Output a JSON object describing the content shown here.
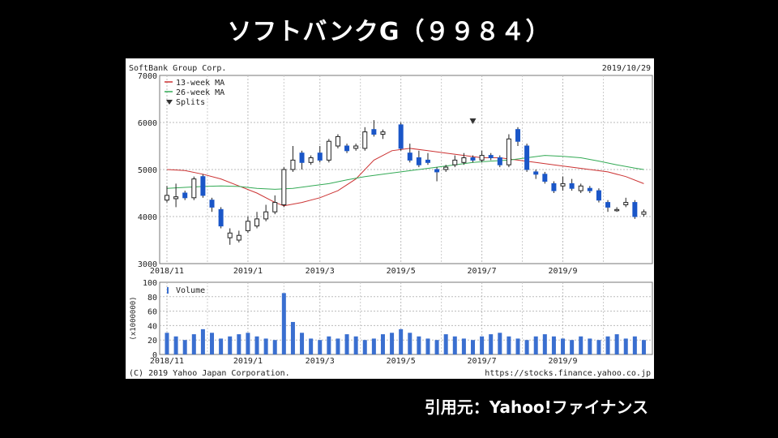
{
  "page": {
    "title": "ソフトバンクG（９９８４）",
    "source": "引用元：Yahoo!ファイナンス"
  },
  "chart_data": {
    "type": "candlestick",
    "company": "SoftBank Group Corp.",
    "date": "2019/10/29",
    "copyright": "(C) 2019 Yahoo Japan Corporation.",
    "url": "https://stocks.finance.yahoo.co.jp",
    "legend": [
      {
        "label": "13-week MA",
        "color": "#cc3333"
      },
      {
        "label": "26-week MA",
        "color": "#33aa55"
      },
      {
        "label": "Splits",
        "color": "#333333"
      }
    ],
    "price_axis": {
      "ticks": [
        3000,
        4000,
        5000,
        6000,
        7000
      ],
      "ylim": [
        3000,
        7000
      ]
    },
    "volume_axis": {
      "label": "(x1000000)",
      "ticks": [
        0,
        20,
        40,
        60,
        80,
        100
      ],
      "ylim": [
        0,
        100
      ],
      "legend": "Volume"
    },
    "x_ticks": [
      {
        "label": "2018/11",
        "week": 0
      },
      {
        "label": "2019/1",
        "week": 9
      },
      {
        "label": "2019/3",
        "week": 17
      },
      {
        "label": "2019/5",
        "week": 26
      },
      {
        "label": "2019/7",
        "week": 35
      },
      {
        "label": "2019/9",
        "week": 44
      }
    ],
    "split_marker_week": 34,
    "candles": [
      {
        "week": 0,
        "open": 4350,
        "close": 4450,
        "high": 4650,
        "low": 4300
      },
      {
        "week": 1,
        "open": 4380,
        "close": 4420,
        "high": 4700,
        "low": 4200
      },
      {
        "week": 2,
        "open": 4500,
        "close": 4400,
        "high": 4550,
        "low": 4350
      },
      {
        "week": 3,
        "open": 4400,
        "close": 4800,
        "high": 4850,
        "low": 4350
      },
      {
        "week": 4,
        "open": 4850,
        "close": 4450,
        "high": 4900,
        "low": 4400
      },
      {
        "week": 5,
        "open": 4350,
        "close": 4200,
        "high": 4400,
        "low": 4100
      },
      {
        "week": 6,
        "open": 4150,
        "close": 3800,
        "high": 4200,
        "low": 3750
      },
      {
        "week": 7,
        "open": 3550,
        "close": 3650,
        "high": 3750,
        "low": 3400
      },
      {
        "week": 8,
        "open": 3500,
        "close": 3600,
        "high": 3700,
        "low": 3450
      },
      {
        "week": 9,
        "open": 3700,
        "close": 3900,
        "high": 4000,
        "low": 3650
      },
      {
        "week": 10,
        "open": 3800,
        "close": 3950,
        "high": 4100,
        "low": 3750
      },
      {
        "week": 11,
        "open": 3950,
        "close": 4100,
        "high": 4250,
        "low": 3900
      },
      {
        "week": 12,
        "open": 4100,
        "close": 4300,
        "high": 4450,
        "low": 4050
      },
      {
        "week": 13,
        "open": 4250,
        "close": 5000,
        "high": 5050,
        "low": 4200
      },
      {
        "week": 14,
        "open": 5000,
        "close": 5200,
        "high": 5500,
        "low": 4950
      },
      {
        "week": 15,
        "open": 5350,
        "close": 5150,
        "high": 5400,
        "low": 5000
      },
      {
        "week": 16,
        "open": 5150,
        "close": 5250,
        "high": 5300,
        "low": 5100
      },
      {
        "week": 17,
        "open": 5350,
        "close": 5200,
        "high": 5500,
        "low": 5150
      },
      {
        "week": 18,
        "open": 5200,
        "close": 5600,
        "high": 5650,
        "low": 5150
      },
      {
        "week": 19,
        "open": 5500,
        "close": 5700,
        "high": 5750,
        "low": 5450
      },
      {
        "week": 20,
        "open": 5500,
        "close": 5400,
        "high": 5550,
        "low": 5350
      },
      {
        "week": 21,
        "open": 5450,
        "close": 5500,
        "high": 5550,
        "low": 5400
      },
      {
        "week": 22,
        "open": 5450,
        "close": 5800,
        "high": 5900,
        "low": 5400
      },
      {
        "week": 23,
        "open": 5850,
        "close": 5750,
        "high": 6050,
        "low": 5700
      },
      {
        "week": 24,
        "open": 5750,
        "close": 5800,
        "high": 5850,
        "low": 5650
      },
      {
        "week": 26,
        "open": 5950,
        "close": 5450,
        "high": 6000,
        "low": 5400
      },
      {
        "week": 27,
        "open": 5350,
        "close": 5200,
        "high": 5550,
        "low": 5150
      },
      {
        "week": 28,
        "open": 5250,
        "close": 5100,
        "high": 5400,
        "low": 5050
      },
      {
        "week": 29,
        "open": 5200,
        "close": 5150,
        "high": 5350,
        "low": 5100
      },
      {
        "week": 30,
        "open": 5000,
        "close": 4950,
        "high": 5050,
        "low": 4750
      },
      {
        "week": 31,
        "open": 5000,
        "close": 5050,
        "high": 5100,
        "low": 4950
      },
      {
        "week": 32,
        "open": 5100,
        "close": 5200,
        "high": 5300,
        "low": 5050
      },
      {
        "week": 33,
        "open": 5150,
        "close": 5250,
        "high": 5350,
        "low": 5100
      },
      {
        "week": 34,
        "open": 5250,
        "close": 5200,
        "high": 5300,
        "low": 5150
      },
      {
        "week": 35,
        "open": 5200,
        "close": 5300,
        "high": 5400,
        "low": 5150
      },
      {
        "week": 36,
        "open": 5300,
        "close": 5250,
        "high": 5350,
        "low": 5200
      },
      {
        "week": 37,
        "open": 5250,
        "close": 5100,
        "high": 5300,
        "low": 5050
      },
      {
        "week": 38,
        "open": 5100,
        "close": 5650,
        "high": 5750,
        "low": 5050
      },
      {
        "week": 39,
        "open": 5850,
        "close": 5600,
        "high": 5900,
        "low": 5500
      },
      {
        "week": 40,
        "open": 5500,
        "close": 5000,
        "high": 5550,
        "low": 4950
      },
      {
        "week": 41,
        "open": 4950,
        "close": 4900,
        "high": 5000,
        "low": 4800
      },
      {
        "week": 42,
        "open": 4900,
        "close": 4750,
        "high": 4950,
        "low": 4700
      },
      {
        "week": 43,
        "open": 4700,
        "close": 4550,
        "high": 4750,
        "low": 4500
      },
      {
        "week": 44,
        "open": 4650,
        "close": 4700,
        "high": 4850,
        "low": 4550
      },
      {
        "week": 45,
        "open": 4700,
        "close": 4600,
        "high": 4800,
        "low": 4550
      },
      {
        "week": 46,
        "open": 4550,
        "close": 4650,
        "high": 4700,
        "low": 4500
      },
      {
        "week": 47,
        "open": 4600,
        "close": 4550,
        "high": 4650,
        "low": 4500
      },
      {
        "week": 48,
        "open": 4550,
        "close": 4350,
        "high": 4600,
        "low": 4300
      },
      {
        "week": 49,
        "open": 4300,
        "close": 4200,
        "high": 4350,
        "low": 4100
      },
      {
        "week": 50,
        "open": 4150,
        "close": 4150,
        "high": 4200,
        "low": 4100
      },
      {
        "week": 51,
        "open": 4250,
        "close": 4300,
        "high": 4400,
        "low": 4200
      },
      {
        "week": 52,
        "open": 4300,
        "close": 4000,
        "high": 4350,
        "low": 3950
      },
      {
        "week": 53,
        "open": 4050,
        "close": 4100,
        "high": 4150,
        "low": 4000
      }
    ],
    "ma13": [
      [
        0,
        5000
      ],
      [
        2,
        4980
      ],
      [
        4,
        4900
      ],
      [
        6,
        4800
      ],
      [
        8,
        4650
      ],
      [
        10,
        4500
      ],
      [
        12,
        4300
      ],
      [
        13,
        4230
      ],
      [
        15,
        4300
      ],
      [
        17,
        4400
      ],
      [
        19,
        4550
      ],
      [
        21,
        4800
      ],
      [
        23,
        5200
      ],
      [
        25,
        5400
      ],
      [
        27,
        5450
      ],
      [
        29,
        5400
      ],
      [
        31,
        5350
      ],
      [
        33,
        5300
      ],
      [
        35,
        5250
      ],
      [
        37,
        5250
      ],
      [
        39,
        5200
      ],
      [
        41,
        5150
      ],
      [
        43,
        5100
      ],
      [
        45,
        5050
      ],
      [
        47,
        5000
      ],
      [
        49,
        4950
      ],
      [
        51,
        4850
      ],
      [
        53,
        4700
      ]
    ],
    "ma26": [
      [
        0,
        4600
      ],
      [
        2,
        4620
      ],
      [
        4,
        4640
      ],
      [
        6,
        4650
      ],
      [
        8,
        4640
      ],
      [
        10,
        4600
      ],
      [
        12,
        4580
      ],
      [
        14,
        4600
      ],
      [
        16,
        4650
      ],
      [
        18,
        4700
      ],
      [
        20,
        4780
      ],
      [
        22,
        4850
      ],
      [
        24,
        4900
      ],
      [
        26,
        4950
      ],
      [
        28,
        5000
      ],
      [
        30,
        5050
      ],
      [
        32,
        5100
      ],
      [
        34,
        5150
      ],
      [
        36,
        5180
      ],
      [
        38,
        5200
      ],
      [
        40,
        5250
      ],
      [
        42,
        5300
      ],
      [
        44,
        5280
      ],
      [
        46,
        5250
      ],
      [
        48,
        5180
      ],
      [
        50,
        5100
      ],
      [
        52,
        5030
      ],
      [
        53,
        5000
      ]
    ],
    "volume": [
      30,
      25,
      20,
      28,
      35,
      30,
      22,
      25,
      28,
      30,
      25,
      22,
      20,
      85,
      45,
      30,
      22,
      20,
      25,
      22,
      28,
      25,
      20,
      22,
      28,
      30,
      35,
      30,
      25,
      22,
      20,
      28,
      25,
      22,
      20,
      25,
      28,
      30,
      25,
      22,
      20,
      25,
      28,
      25,
      22,
      20,
      25,
      22,
      20,
      25,
      28,
      22,
      25,
      20
    ]
  }
}
